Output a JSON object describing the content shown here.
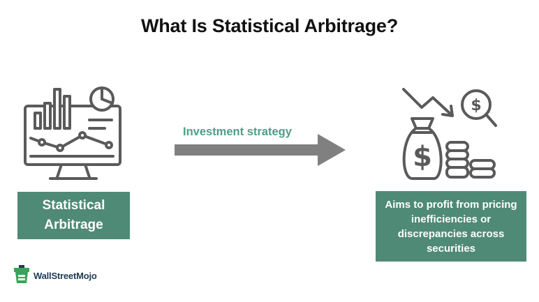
{
  "title": "What Is Statistical Arbitrage?",
  "left_node": {
    "icon": "monitor-chart-icon",
    "label": "Statistical Arbitrage"
  },
  "arrow": {
    "label": "Investment strategy"
  },
  "right_node": {
    "icon": "money-bag-decline-icon",
    "label": "Aims to profit from pricing inefficiencies or discrepancies across securities"
  },
  "logo": {
    "text": "WallStreetMojo"
  },
  "colors": {
    "box": "#4f8a76",
    "arrow": "#808080",
    "arrow_label": "#4f9e86",
    "icon": "#5a5a5a"
  }
}
